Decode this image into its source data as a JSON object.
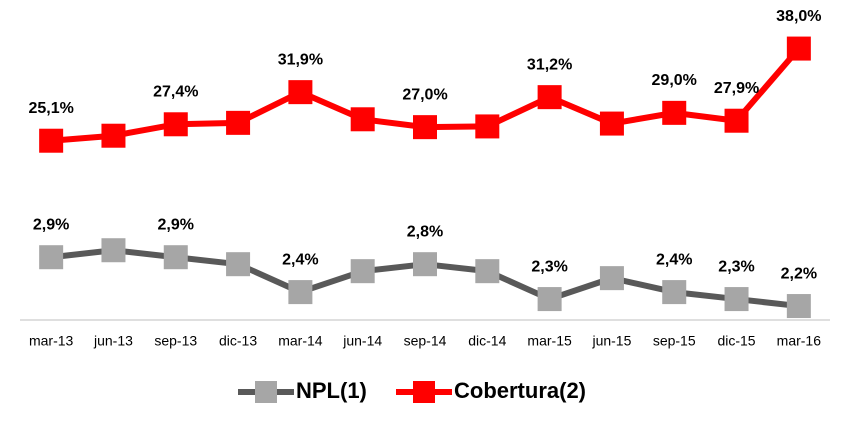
{
  "chart_data": {
    "type": "line",
    "categories": [
      "mar-13",
      "jun-13",
      "sep-13",
      "dic-13",
      "mar-14",
      "jun-14",
      "sep-14",
      "dic-14",
      "mar-15",
      "jun-15",
      "sep-15",
      "dic-15",
      "mar-16"
    ],
    "series": [
      {
        "name": "NPL(1)",
        "color": "#595959",
        "marker_color": "#a6a6a6",
        "axis": "y",
        "values": [
          2.9,
          3.0,
          2.9,
          2.8,
          2.4,
          2.7,
          2.8,
          2.7,
          2.3,
          2.6,
          2.4,
          2.3,
          2.2
        ],
        "value_labels": [
          "2,9%",
          null,
          "2,9%",
          null,
          "2,4%",
          null,
          "2,8%",
          null,
          "2,3%",
          null,
          "2,4%",
          "2,3%",
          "2,2%"
        ]
      },
      {
        "name": "Cobertura(2)",
        "color": "#ff0000",
        "marker_color": "#ff0000",
        "axis": "y2",
        "values": [
          25.1,
          25.8,
          27.4,
          27.6,
          31.9,
          28.1,
          27.0,
          27.1,
          31.2,
          27.5,
          29.0,
          27.9,
          38.0
        ],
        "value_labels": [
          "25,1%",
          null,
          "27,4%",
          null,
          "31,9%",
          null,
          "27,0%",
          null,
          "31,2%",
          null,
          "29,0%",
          "27,9%",
          "38,0%"
        ]
      }
    ],
    "ylim": [
      2.0,
      6.3
    ],
    "y2lim": [
      0,
      42
    ],
    "legend": "bottom"
  }
}
